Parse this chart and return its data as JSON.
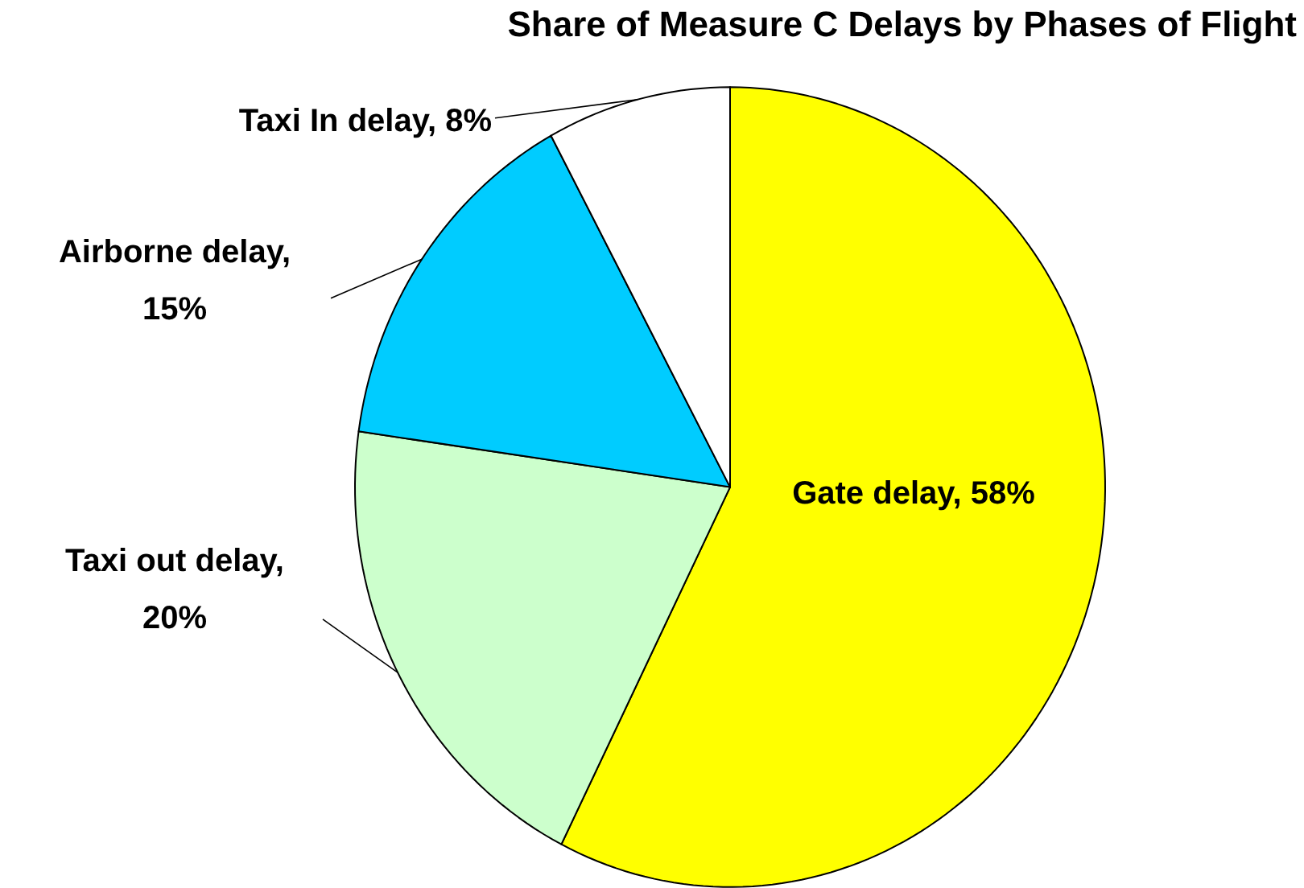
{
  "chart_data": {
    "type": "pie",
    "title": "Share of Measure C Delays by Phases of Flight",
    "categories": [
      "Gate delay, 58%",
      "Taxi out delay, 20%",
      "Airborne delay, 15%",
      "Taxi In delay, 8%"
    ],
    "values": [
      58,
      20,
      15,
      8
    ],
    "colors": [
      "#ffff00",
      "#ccffcc",
      "#00ccff",
      "#ffffff"
    ]
  }
}
